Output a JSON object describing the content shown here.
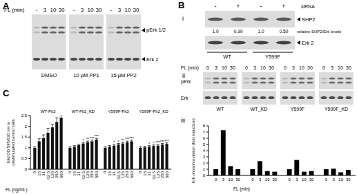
{
  "panel_a": {
    "label": "A",
    "x_label": "FL (min)",
    "lanes": [
      "-",
      "3",
      "10",
      "30"
    ],
    "groups": [
      "DMSO",
      "10 µM PP1",
      "15 µM PP2"
    ],
    "bands": [
      "pErk 1/2",
      "Erk 2"
    ]
  },
  "panel_b": {
    "label": "B",
    "i": {
      "label": "i",
      "treatment": "siRNA",
      "lanes": [
        "-",
        "+",
        "-",
        "+"
      ],
      "bands": [
        "SHP2",
        "Erk 2"
      ],
      "relative_label": "relative SHP2/Erk levels",
      "relative_levels": [
        "1.0",
        "0.39",
        "1.0",
        "0.50"
      ],
      "groups": [
        "WT",
        "Y599F"
      ]
    },
    "ii": {
      "label": "ii",
      "x_label": "FL (min)",
      "lanes": [
        "0",
        "3",
        "10",
        "30"
      ],
      "bands": [
        "pErk",
        "Erk"
      ],
      "groups": [
        "WT",
        "WT_KD",
        "Y599F",
        "Y599F_KD"
      ]
    },
    "iii": {
      "label": "iii"
    }
  },
  "panel_c": {
    "label": "C"
  },
  "chart_data": [
    {
      "type": "bar",
      "y_label": "fold OD 595/630 nm to unstimulated control cells",
      "x_label": "FL (ng/mL)",
      "categories": [
        "0",
        "15",
        "31",
        "62.5",
        "125",
        "250",
        "500"
      ],
      "series": [
        {
          "name": "WT-Flt3",
          "color": "#111111",
          "values": [
            1.0,
            1.3,
            1.45,
            1.7,
            1.95,
            2.2,
            2.4
          ],
          "errors": [
            0.05,
            0.12,
            0.15,
            0.2,
            0.15,
            0.2,
            0.1
          ]
        },
        {
          "name": "WT-Flt3_KD",
          "color": "#111111",
          "values": [
            1.0,
            1.05,
            1.12,
            1.2,
            1.25,
            1.3,
            1.38
          ],
          "errors": [
            0.05,
            0.05,
            0.05,
            0.06,
            0.06,
            0.06,
            0.06
          ],
          "annotations": [
            null,
            null,
            null,
            "*",
            "**",
            "***",
            "***"
          ]
        },
        {
          "name": "Y599F-Flt3",
          "color": "#111111",
          "values": [
            1.0,
            1.05,
            1.1,
            1.15,
            1.2,
            1.25,
            1.3
          ],
          "errors": [
            0.05,
            0.05,
            0.05,
            0.05,
            0.06,
            0.06,
            0.06
          ],
          "annotations": [
            null,
            null,
            "*",
            "*",
            "**",
            "***",
            "***"
          ]
        },
        {
          "name": "Y599F-Flt3_KD",
          "color": "#111111",
          "values": [
            1.0,
            1.02,
            1.05,
            1.08,
            1.1,
            1.15,
            1.18
          ],
          "errors": [
            0.05,
            0.05,
            0.05,
            0.05,
            0.05,
            0.05,
            0.05
          ],
          "annotations": [
            null,
            null,
            "*",
            "*",
            "***",
            "***",
            "***"
          ]
        }
      ],
      "ylim": [
        0,
        2.5
      ],
      "yticks": [
        0,
        0.5,
        1,
        1.5,
        2,
        2.5
      ]
    },
    {
      "type": "bar",
      "y_label": "Erk phosphorylation (fold induction)",
      "x_label": "FL (min)",
      "categories": [
        "0",
        "3",
        "10",
        "30"
      ],
      "series": [
        {
          "color": "#000000",
          "values": [
            1,
            7.3,
            1.5,
            1.0
          ]
        },
        {
          "color": "#000000",
          "values": [
            1,
            2.3,
            0.7,
            0.6
          ]
        },
        {
          "color": "#000000",
          "values": [
            1,
            2.5,
            0.6,
            0.7
          ]
        },
        {
          "color": "#000000",
          "values": [
            1,
            1.1,
            0.5,
            0.9
          ]
        }
      ],
      "ylim": [
        0,
        8
      ],
      "yticks": [
        0,
        1,
        2,
        3,
        4,
        5,
        6,
        7,
        8
      ]
    }
  ]
}
